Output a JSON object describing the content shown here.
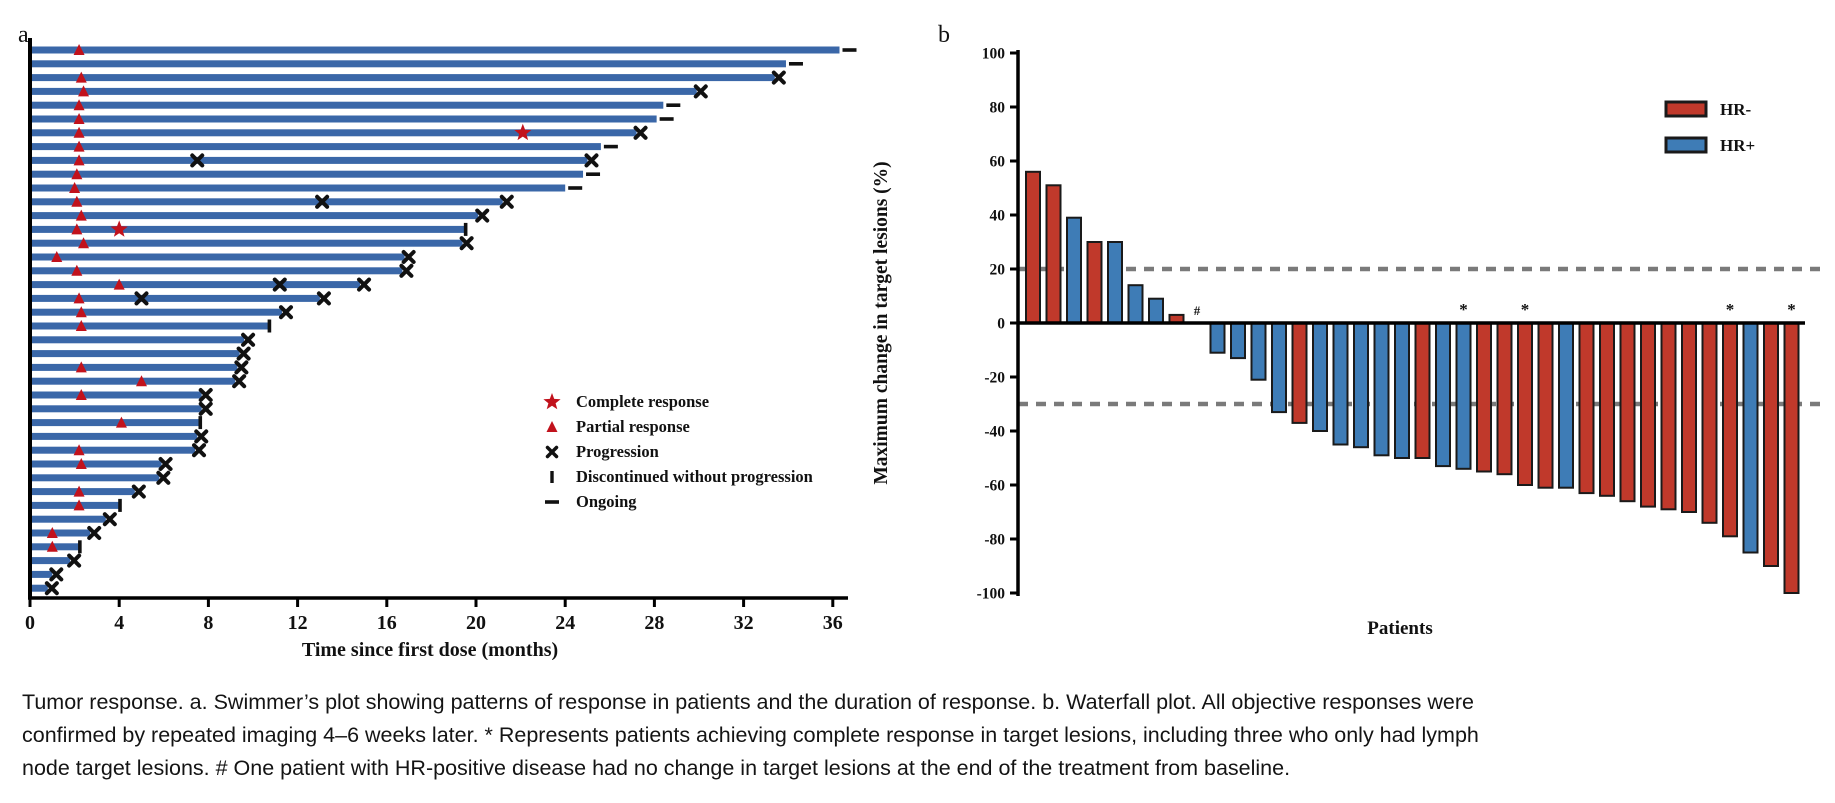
{
  "figure": {
    "caption": "Tumor response. a. Swimmer’s plot showing patterns of response in patients and the duration of response. b. Waterfall plot. All objective responses were confirmed by repeated imaging 4–6 weeks later. * Represents patients achieving complete response in target lesions, including three who only had lymph node target lesions. # One patient with HR-positive disease had no change in target lesions at the end of the treatment from baseline."
  },
  "chart_data": [
    {
      "type": "swimmer",
      "panel_label": "a",
      "xlabel": "Time since first dose (months)",
      "xlim": [
        0,
        38
      ],
      "xticks": [
        0,
        4,
        8,
        12,
        16,
        20,
        24,
        28,
        32,
        36
      ],
      "bar_color": "#3A67A8",
      "marker_red": "#C1121C",
      "marker_black": "#111111",
      "legend": [
        {
          "symbol": "star",
          "label": "Complete response"
        },
        {
          "symbol": "triangle",
          "label": "Partial response"
        },
        {
          "symbol": "x",
          "label": "Progression"
        },
        {
          "symbol": "bar",
          "label": "Discontinued without progression"
        },
        {
          "symbol": "dash",
          "label": "Ongoing"
        }
      ],
      "bars": [
        {
          "duration": 36.3,
          "pr": 2.2,
          "end": "ongoing"
        },
        {
          "duration": 33.9,
          "end": "ongoing"
        },
        {
          "duration": 33.4,
          "pr": 2.3,
          "end": "progression"
        },
        {
          "duration": 29.9,
          "pr": 2.4,
          "end": "progression"
        },
        {
          "duration": 28.4,
          "pr": 2.2,
          "end": "ongoing"
        },
        {
          "duration": 28.1,
          "pr": 2.2,
          "end": "ongoing"
        },
        {
          "duration": 27.2,
          "pr": 2.2,
          "cr": 22.1,
          "end": "progression"
        },
        {
          "duration": 25.6,
          "pr": 2.2,
          "end": "ongoing"
        },
        {
          "duration": 25.0,
          "pr": 2.2,
          "x_mid": 7.5,
          "end": "progression"
        },
        {
          "duration": 24.8,
          "pr": 2.1,
          "end": "ongoing"
        },
        {
          "duration": 24.0,
          "pr": 2.0,
          "end": "ongoing"
        },
        {
          "duration": 21.2,
          "pr": 2.1,
          "x_mid": 13.1,
          "end": "progression"
        },
        {
          "duration": 20.1,
          "pr": 2.3,
          "end": "progression"
        },
        {
          "duration": 19.5,
          "pr": 2.1,
          "cr": 4.0,
          "end": "discontinued"
        },
        {
          "duration": 19.4,
          "pr": 2.4,
          "end": "progression"
        },
        {
          "duration": 16.8,
          "pr": 1.2,
          "end": "progression"
        },
        {
          "duration": 16.7,
          "pr": 2.1,
          "end": "progression"
        },
        {
          "duration": 14.8,
          "pr": 4.0,
          "x_mid": 11.2,
          "end": "progression"
        },
        {
          "duration": 13.0,
          "pr": 2.2,
          "x_mid": 5.0,
          "end": "progression"
        },
        {
          "duration": 11.3,
          "pr": 2.3,
          "end": "progression"
        },
        {
          "duration": 10.7,
          "pr": 2.3,
          "end": "discontinued"
        },
        {
          "duration": 9.6,
          "end": "progression"
        },
        {
          "duration": 9.4,
          "end": "progression"
        },
        {
          "duration": 9.3,
          "pr": 2.3,
          "end": "progression"
        },
        {
          "duration": 9.2,
          "pr": 5.0,
          "end": "progression"
        },
        {
          "duration": 7.7,
          "pr": 2.3,
          "end": "progression"
        },
        {
          "duration": 7.7,
          "end": "progression"
        },
        {
          "duration": 7.6,
          "pr": 4.1,
          "end": "discontinued"
        },
        {
          "duration": 7.5,
          "end": "progression"
        },
        {
          "duration": 7.4,
          "pr": 2.2,
          "end": "progression"
        },
        {
          "duration": 5.9,
          "pr": 2.3,
          "end": "progression"
        },
        {
          "duration": 5.8,
          "end": "progression"
        },
        {
          "duration": 4.7,
          "pr": 2.2,
          "end": "progression"
        },
        {
          "duration": 4.0,
          "pr": 2.2,
          "end": "discontinued"
        },
        {
          "duration": 3.4,
          "end": "progression"
        },
        {
          "duration": 2.7,
          "pr": 1.0,
          "end": "progression"
        },
        {
          "duration": 2.2,
          "pr": 1.0,
          "end": "discontinued"
        },
        {
          "duration": 1.8,
          "end": "progression"
        },
        {
          "duration": 1.0,
          "end": "progression"
        },
        {
          "duration": 0.8,
          "end": "progression"
        }
      ]
    },
    {
      "type": "waterfall",
      "panel_label": "b",
      "ylabel": "Maximum change in target lesions (%)",
      "xlabel": "Patients",
      "ylim": [
        -100,
        100
      ],
      "yticks": [
        100,
        80,
        60,
        40,
        20,
        0,
        -20,
        -40,
        -60,
        -80,
        -100
      ],
      "reference_lines": [
        20,
        -30
      ],
      "reference_line_color": "#7A7A7A",
      "colors": {
        "HR-": "#C0392B",
        "HR+": "#3E7CB6",
        "outline": "#1A1A1A"
      },
      "legend": [
        {
          "label": "HR-",
          "group": "HR-"
        },
        {
          "label": "HR+",
          "group": "HR+"
        }
      ],
      "annotations": {
        "complete_response": "*",
        "no_change": "#"
      },
      "patients": [
        {
          "value": 56,
          "group": "HR-"
        },
        {
          "value": 51,
          "group": "HR-"
        },
        {
          "value": 39,
          "group": "HR+"
        },
        {
          "value": 30,
          "group": "HR-"
        },
        {
          "value": 30,
          "group": "HR+"
        },
        {
          "value": 14,
          "group": "HR+"
        },
        {
          "value": 9,
          "group": "HR+"
        },
        {
          "value": 3,
          "group": "HR-"
        },
        {
          "value": 0,
          "group": "HR+",
          "annotation": "#"
        },
        {
          "value": -11,
          "group": "HR+"
        },
        {
          "value": -13,
          "group": "HR+"
        },
        {
          "value": -21,
          "group": "HR+"
        },
        {
          "value": -33,
          "group": "HR+"
        },
        {
          "value": -37,
          "group": "HR-"
        },
        {
          "value": -40,
          "group": "HR+"
        },
        {
          "value": -45,
          "group": "HR+"
        },
        {
          "value": -46,
          "group": "HR+"
        },
        {
          "value": -49,
          "group": "HR+"
        },
        {
          "value": -50,
          "group": "HR+"
        },
        {
          "value": -50,
          "group": "HR-"
        },
        {
          "value": -53,
          "group": "HR+"
        },
        {
          "value": -54,
          "group": "HR+",
          "annotation": "*"
        },
        {
          "value": -55,
          "group": "HR-"
        },
        {
          "value": -56,
          "group": "HR-"
        },
        {
          "value": -60,
          "group": "HR-",
          "annotation": "*"
        },
        {
          "value": -61,
          "group": "HR-"
        },
        {
          "value": -61,
          "group": "HR+"
        },
        {
          "value": -63,
          "group": "HR-"
        },
        {
          "value": -64,
          "group": "HR-"
        },
        {
          "value": -66,
          "group": "HR-"
        },
        {
          "value": -68,
          "group": "HR-"
        },
        {
          "value": -69,
          "group": "HR-"
        },
        {
          "value": -70,
          "group": "HR-"
        },
        {
          "value": -74,
          "group": "HR-"
        },
        {
          "value": -79,
          "group": "HR-",
          "annotation": "*"
        },
        {
          "value": -85,
          "group": "HR+"
        },
        {
          "value": -90,
          "group": "HR-"
        },
        {
          "value": -100,
          "group": "HR-",
          "annotation": "*"
        }
      ]
    }
  ]
}
